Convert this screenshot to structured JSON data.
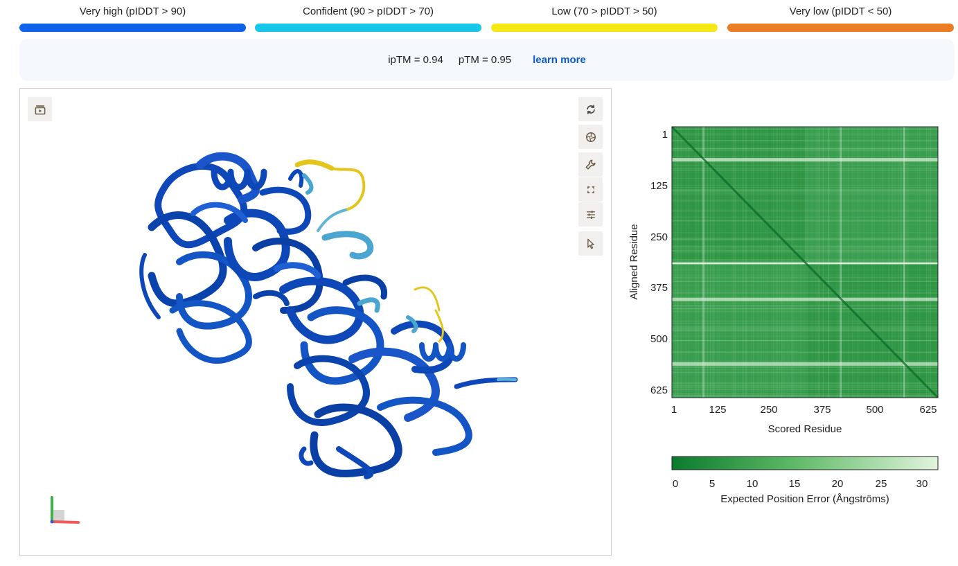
{
  "plddt_legend": [
    {
      "label": "Very high (pIDDT > 90)",
      "color": "#0f62ea"
    },
    {
      "label": "Confident (90 > pIDDT > 70)",
      "color": "#17c6e8"
    },
    {
      "label": "Low (70 > pIDDT > 50)",
      "color": "#f4e816"
    },
    {
      "label": "Very low (pIDDT < 50)",
      "color": "#ea7d23"
    }
  ],
  "metrics": {
    "iptm": "ipTM = 0.94",
    "ptm": "pTM = 0.95",
    "learn_more": "learn more"
  },
  "viewer": {
    "toolbar": [
      {
        "icon": "rotate-icon"
      },
      {
        "icon": "camera-shutter-icon"
      },
      {
        "icon": "wrench-icon"
      },
      {
        "icon": "fullscreen-icon"
      },
      {
        "icon": "sliders-icon"
      },
      {
        "icon": "cursor-icon"
      }
    ],
    "left_icon": "playlist-play-icon"
  },
  "chart_data": {
    "type": "heatmap",
    "xlabel": "Scored Residue",
    "ylabel": "Aligned Residue",
    "x_ticks": [
      "1",
      "125",
      "250",
      "375",
      "500",
      "625"
    ],
    "y_ticks": [
      "1",
      "125",
      "250",
      "375",
      "500",
      "625"
    ],
    "xlim": [
      1,
      630
    ],
    "ylim": [
      1,
      630
    ],
    "chain_boundary": 315,
    "colorbar": {
      "label": "Expected Position Error (Ångströms)",
      "ticks": [
        "0",
        "5",
        "10",
        "15",
        "20",
        "25",
        "30"
      ],
      "range": [
        0,
        31.75
      ],
      "color_low": "#0b7a2e",
      "color_high": "#e2f5dd"
    },
    "bright_lines": [
      75,
      318,
      400,
      550
    ],
    "colors": {
      "low": "#137f36",
      "mid": "#2e9645",
      "high": "#e8f6e4"
    }
  }
}
